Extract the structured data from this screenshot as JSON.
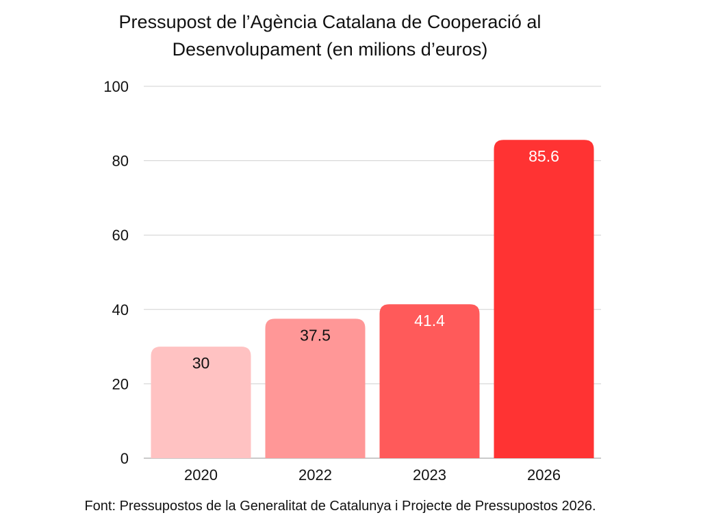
{
  "chart_data": {
    "type": "bar",
    "title_lines": [
      "Pressupost de l’Agència Catalana de Cooperació al",
      "Desenvolupament (en milions d’euros)"
    ],
    "categories": [
      "2020",
      "2022",
      "2023",
      "2026"
    ],
    "values": [
      30,
      37.5,
      41.4,
      85.6
    ],
    "value_labels": [
      "30",
      "37.5",
      "41.4",
      "85.6"
    ],
    "bar_colors": [
      "#ffc2c2",
      "#ff9797",
      "#ff5a5a",
      "#ff3333"
    ],
    "value_label_colors": [
      "#111111",
      "#111111",
      "#ffffff",
      "#ffffff"
    ],
    "ylim": [
      0,
      100
    ],
    "yticks": [
      0,
      20,
      40,
      60,
      80,
      100
    ],
    "grid": true,
    "xlabel": "",
    "ylabel": ""
  },
  "footnote": "Font: Pressupostos de la Generalitat de Catalunya i Projecte de Pressupostos 2026."
}
